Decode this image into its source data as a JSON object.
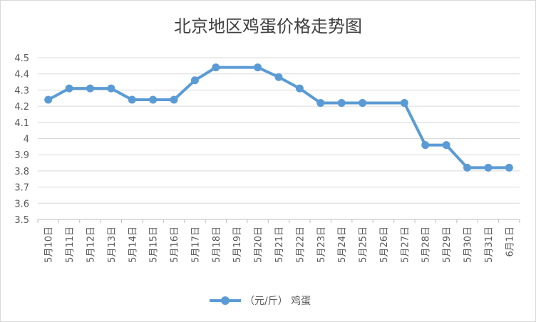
{
  "chart_data": {
    "type": "line",
    "title": "北京地区鸡蛋价格走势图",
    "xlabel": "",
    "ylabel": "",
    "categories": [
      "5月10日",
      "5月11日",
      "5月12日",
      "5月13日",
      "5月14日",
      "5月15日",
      "5月16日",
      "5月17日",
      "5月18日",
      "5月19日",
      "5月20日",
      "5月21日",
      "5月22日",
      "5月23日",
      "5月24日",
      "5月25日",
      "5月26日",
      "5月27日",
      "5月28日",
      "5月29日",
      "5月30日",
      "5月31日",
      "6月1日"
    ],
    "series": [
      {
        "name": "（元/斤） 鸡蛋",
        "values": [
          4.24,
          4.31,
          4.31,
          4.31,
          4.24,
          4.24,
          4.24,
          4.36,
          4.44,
          null,
          4.44,
          4.38,
          4.31,
          4.22,
          4.22,
          4.22,
          null,
          4.22,
          3.96,
          3.96,
          3.82,
          3.82,
          3.82
        ]
      }
    ],
    "ylim": [
      3.5,
      4.5
    ],
    "yticks": [
      "3.5",
      "3.6",
      "3.7",
      "3.8",
      "3.9",
      "4",
      "4.1",
      "4.2",
      "4.3",
      "4.4",
      "4.5"
    ],
    "grid": true,
    "legend": "bottom",
    "colors": {
      "line": "#5b9bd5",
      "grid": "#d9d9d9",
      "axis": "#bfbfbf"
    }
  }
}
